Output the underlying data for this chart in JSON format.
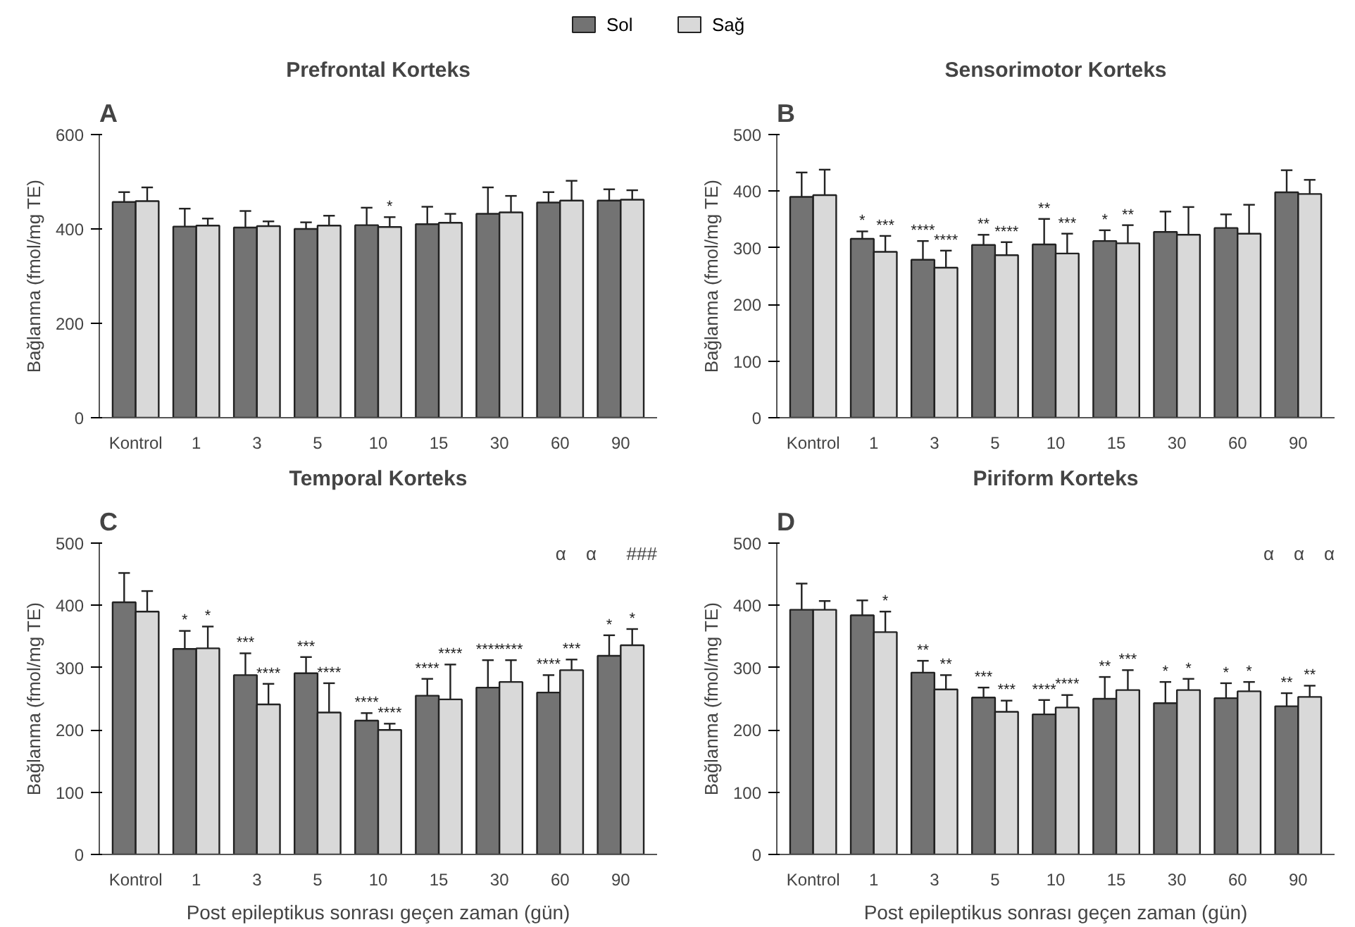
{
  "chart_data": [
    {
      "type": "bar",
      "title": "Prefrontal Korteks",
      "ylabel": "Bağlanma (fmol/mg TE)",
      "legend": "top",
      "annotations": [
        "A"
      ],
      "categories": [
        "Kontrol",
        "1",
        "3",
        "5",
        "10",
        "15",
        "30",
        "60",
        "90"
      ],
      "ylim": [
        0,
        600
      ],
      "yticks": [
        0,
        200,
        400,
        600
      ],
      "grid": false,
      "series": [
        {
          "name": "Sol",
          "color": "#737373",
          "values": [
            457,
            405,
            403,
            400,
            408,
            410,
            432,
            456,
            460
          ],
          "errors": [
            [
              457,
              478
            ],
            [
              405,
              443
            ],
            [
              403,
              438
            ],
            [
              400,
              414
            ],
            [
              408,
              445
            ],
            [
              410,
              447
            ],
            [
              432,
              488
            ],
            [
              456,
              478
            ],
            [
              460,
              484
            ]
          ]
        },
        {
          "name": "Sağ",
          "color": "#d9d9d9",
          "values": [
            459,
            407,
            406,
            407,
            404,
            413,
            435,
            460,
            462
          ],
          "errors": [
            [
              459,
              488
            ],
            [
              407,
              422
            ],
            [
              406,
              416
            ],
            [
              407,
              428
            ],
            [
              404,
              425
            ],
            [
              413,
              432
            ],
            [
              435,
              470
            ],
            [
              460,
              502
            ],
            [
              462,
              482
            ]
          ],
          "value_labels": [
            null,
            null,
            null,
            null,
            "*",
            null,
            null,
            null,
            null
          ]
        }
      ]
    },
    {
      "type": "bar",
      "title": "Sensorimotor Korteks",
      "ylabel": "Bağlanma (fmol/mg TE)",
      "annotations": [
        "B"
      ],
      "categories": [
        "Kontrol",
        "1",
        "3",
        "5",
        "10",
        "15",
        "30",
        "60",
        "90"
      ],
      "ylim": [
        0,
        500
      ],
      "yticks": [
        0,
        100,
        200,
        300,
        400,
        500
      ],
      "grid": false,
      "series": [
        {
          "color": "#737373",
          "values": [
            390,
            316,
            279,
            305,
            306,
            312,
            328,
            335,
            398
          ],
          "errors": [
            [
              390,
              433
            ],
            [
              316,
              329
            ],
            [
              279,
              312
            ],
            [
              305,
              323
            ],
            [
              306,
              351
            ],
            [
              312,
              331
            ],
            [
              328,
              364
            ],
            [
              335,
              359
            ],
            [
              398,
              437
            ]
          ],
          "value_labels": [
            null,
            "*",
            "****",
            "**",
            "**",
            "*",
            null,
            null,
            null
          ]
        },
        {
          "color": "#d9d9d9",
          "values": [
            393,
            293,
            265,
            287,
            290,
            308,
            323,
            325,
            395
          ],
          "errors": [
            [
              393,
              438
            ],
            [
              293,
              321
            ],
            [
              265,
              295
            ],
            [
              287,
              310
            ],
            [
              290,
              325
            ],
            [
              308,
              340
            ],
            [
              323,
              372
            ],
            [
              325,
              376
            ],
            [
              395,
              420
            ]
          ],
          "value_labels": [
            null,
            "***",
            "****",
            "****",
            "***",
            "**",
            null,
            null,
            null
          ]
        }
      ]
    },
    {
      "type": "bar",
      "title": "Temporal Korteks",
      "ylabel": "Bağlanma (fmol/mg TE)",
      "xlabel": "Post epileptikus sonrası geçen zaman (gün)",
      "annotations": [
        "C",
        "α",
        "α",
        "###"
      ],
      "categories": [
        "Kontrol",
        "1",
        "3",
        "5",
        "10",
        "15",
        "30",
        "60",
        "90"
      ],
      "ylim": [
        0,
        500
      ],
      "yticks": [
        0,
        100,
        200,
        300,
        400,
        500
      ],
      "grid": false,
      "series": [
        {
          "color": "#737373",
          "values": [
            405,
            330,
            288,
            291,
            215,
            255,
            268,
            260,
            319
          ],
          "errors": [
            [
              405,
              452
            ],
            [
              330,
              359
            ],
            [
              288,
              323
            ],
            [
              291,
              317
            ],
            [
              215,
              227
            ],
            [
              255,
              282
            ],
            [
              268,
              312
            ],
            [
              260,
              288
            ],
            [
              319,
              352
            ]
          ],
          "value_labels": [
            null,
            "*",
            "***",
            "***",
            "****",
            "****",
            "****",
            "****",
            "*"
          ]
        },
        {
          "color": "#d9d9d9",
          "values": [
            390,
            331,
            241,
            228,
            200,
            249,
            277,
            296,
            336
          ],
          "errors": [
            [
              390,
              423
            ],
            [
              331,
              366
            ],
            [
              241,
              274
            ],
            [
              228,
              275
            ],
            [
              200,
              210
            ],
            [
              249,
              305
            ],
            [
              277,
              312
            ],
            [
              296,
              313
            ],
            [
              336,
              362
            ]
          ],
          "value_labels": [
            null,
            "*",
            "****",
            "****",
            "****",
            "****",
            "****",
            "***",
            "*"
          ]
        }
      ]
    },
    {
      "type": "bar",
      "title": "Piriform Korteks",
      "ylabel": "Bağlanma (fmol/mg TE)",
      "xlabel": "Post epileptikus sonrası geçen zaman (gün)",
      "annotations": [
        "D",
        "α",
        "α",
        "α"
      ],
      "categories": [
        "Kontrol",
        "1",
        "3",
        "5",
        "10",
        "15",
        "30",
        "60",
        "90"
      ],
      "ylim": [
        0,
        500
      ],
      "yticks": [
        0,
        100,
        200,
        300,
        400,
        500
      ],
      "grid": false,
      "series": [
        {
          "color": "#737373",
          "values": [
            393,
            384,
            292,
            252,
            225,
            250,
            243,
            251,
            238
          ],
          "errors": [
            [
              393,
              435
            ],
            [
              384,
              408
            ],
            [
              292,
              311
            ],
            [
              252,
              268
            ],
            [
              225,
              248
            ],
            [
              250,
              285
            ],
            [
              243,
              277
            ],
            [
              251,
              275
            ],
            [
              238,
              259
            ]
          ],
          "value_labels": [
            null,
            null,
            "**",
            "***",
            "****",
            "**",
            "*",
            "*",
            "**"
          ]
        },
        {
          "color": "#d9d9d9",
          "values": [
            393,
            357,
            265,
            229,
            236,
            264,
            264,
            262,
            253
          ],
          "errors": [
            [
              393,
              407
            ],
            [
              357,
              390
            ],
            [
              265,
              288
            ],
            [
              229,
              247
            ],
            [
              236,
              256
            ],
            [
              264,
              296
            ],
            [
              264,
              282
            ],
            [
              262,
              277
            ],
            [
              253,
              271
            ]
          ],
          "value_labels": [
            null,
            "*",
            "**",
            "***",
            "****",
            "***",
            "*",
            "*",
            "**"
          ]
        }
      ]
    }
  ]
}
